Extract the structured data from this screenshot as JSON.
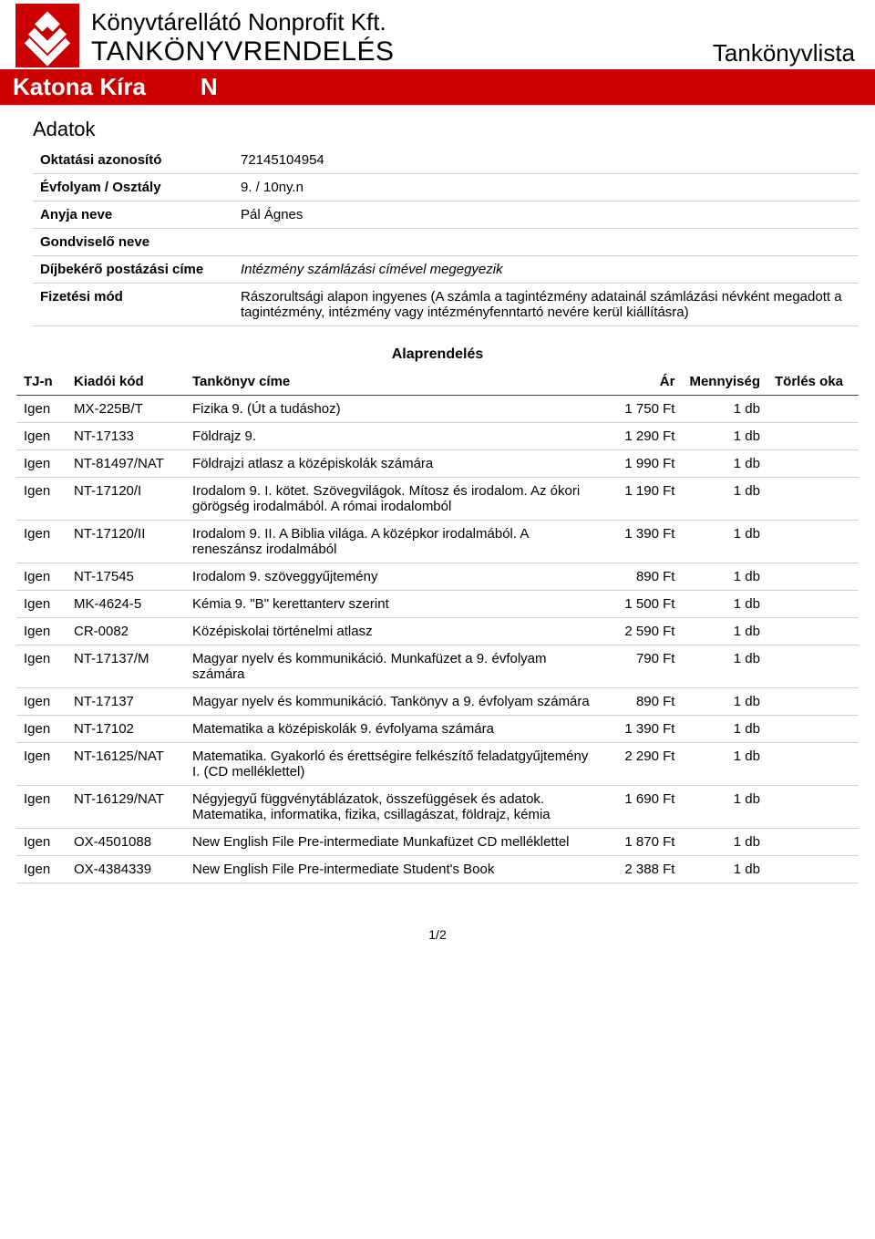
{
  "brand_color": "#cc0000",
  "header": {
    "company_name": "Könyvtárellátó Nonprofit Kft.",
    "subtitle": "TANKÖNYVRENDELÉS",
    "doc_type": "Tankönyvlista"
  },
  "student": {
    "name": "Katona Kíra",
    "code": "N"
  },
  "section_title": "Adatok",
  "info": [
    {
      "label": "Oktatási azonosító",
      "value": "72145104954",
      "italic": false
    },
    {
      "label": "Évfolyam / Osztály",
      "value": "9. / 10ny.n",
      "italic": false
    },
    {
      "label": "Anyja neve",
      "value": "Pál Ágnes",
      "italic": false
    },
    {
      "label": "Gondviselő neve",
      "value": "",
      "italic": false
    },
    {
      "label": "Díjbekérő postázási címe",
      "value": "Intézmény számlázási címével megegyezik",
      "italic": true
    },
    {
      "label": "Fizetési mód",
      "value": "Rászorultsági alapon ingyenes (A számla a tagintézmény adatainál számlázási névként megadott a tagintézmény, intézmény vagy intézményfenntartó nevére kerül kiállításra)",
      "italic": false
    }
  ],
  "order_header": "Alaprendelés",
  "columns": {
    "tjn": "TJ-n",
    "code": "Kiadói kód",
    "title": "Tankönyv címe",
    "price": "Ár",
    "qty": "Mennyiség",
    "del": "Törlés oka"
  },
  "rows": [
    {
      "tjn": "Igen",
      "code": "MX-225B/T",
      "title": "Fizika 9. (Út a tudáshoz)",
      "price": "1 750 Ft",
      "qty": "1 db",
      "del": ""
    },
    {
      "tjn": "Igen",
      "code": "NT-17133",
      "title": "Földrajz 9.",
      "price": "1 290 Ft",
      "qty": "1 db",
      "del": ""
    },
    {
      "tjn": "Igen",
      "code": "NT-81497/NAT",
      "title": "Földrajzi atlasz a középiskolák számára",
      "price": "1 990 Ft",
      "qty": "1 db",
      "del": ""
    },
    {
      "tjn": "Igen",
      "code": "NT-17120/I",
      "title": "Irodalom 9. I. kötet. Szövegvilágok. Mítosz és irodalom. Az ókori görögség irodalmából. A római irodalomból",
      "price": "1 190 Ft",
      "qty": "1 db",
      "del": ""
    },
    {
      "tjn": "Igen",
      "code": "NT-17120/II",
      "title": "Irodalom 9. II. A Biblia világa. A középkor irodalmából. A reneszánsz irodalmából",
      "price": "1 390 Ft",
      "qty": "1 db",
      "del": ""
    },
    {
      "tjn": "Igen",
      "code": "NT-17545",
      "title": "Irodalom 9. szöveggyűjtemény",
      "price": "890 Ft",
      "qty": "1 db",
      "del": ""
    },
    {
      "tjn": "Igen",
      "code": "MK-4624-5",
      "title": "Kémia 9. \"B\" kerettanterv szerint",
      "price": "1 500 Ft",
      "qty": "1 db",
      "del": ""
    },
    {
      "tjn": "Igen",
      "code": "CR-0082",
      "title": "Középiskolai történelmi atlasz",
      "price": "2 590 Ft",
      "qty": "1 db",
      "del": ""
    },
    {
      "tjn": "Igen",
      "code": "NT-17137/M",
      "title": "Magyar nyelv és kommunikáció. Munkafüzet a 9. évfolyam számára",
      "price": "790 Ft",
      "qty": "1 db",
      "del": ""
    },
    {
      "tjn": "Igen",
      "code": "NT-17137",
      "title": "Magyar nyelv és kommunikáció. Tankönyv a 9. évfolyam számára",
      "price": "890 Ft",
      "qty": "1 db",
      "del": ""
    },
    {
      "tjn": "Igen",
      "code": "NT-17102",
      "title": "Matematika a középiskolák 9. évfolyama számára",
      "price": "1 390 Ft",
      "qty": "1 db",
      "del": ""
    },
    {
      "tjn": "Igen",
      "code": "NT-16125/NAT",
      "title": "Matematika. Gyakorló és érettségire felkészítő feladatgyűjtemény I. (CD melléklettel)",
      "price": "2 290 Ft",
      "qty": "1 db",
      "del": ""
    },
    {
      "tjn": "Igen",
      "code": "NT-16129/NAT",
      "title": "Négyjegyű függvénytáblázatok, összefüggések és adatok. Matematika, informatika, fizika, csillagászat, földrajz, kémia",
      "price": "1 690 Ft",
      "qty": "1 db",
      "del": ""
    },
    {
      "tjn": "Igen",
      "code": "OX-4501088",
      "title": "New English File Pre-intermediate Munkafüzet CD melléklettel",
      "price": "1 870 Ft",
      "qty": "1 db",
      "del": ""
    },
    {
      "tjn": "Igen",
      "code": "OX-4384339",
      "title": "New English File Pre-intermediate Student's Book",
      "price": "2 388 Ft",
      "qty": "1 db",
      "del": ""
    }
  ],
  "pager": "1/2"
}
